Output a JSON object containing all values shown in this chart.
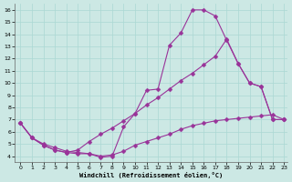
{
  "xlabel": "Windchill (Refroidissement éolien,°C)",
  "bg_color": "#cce8e4",
  "line_color": "#993399",
  "xlim": [
    -0.5,
    23.3
  ],
  "ylim": [
    3.5,
    16.5
  ],
  "xticks": [
    0,
    1,
    2,
    3,
    4,
    5,
    6,
    7,
    8,
    9,
    10,
    11,
    12,
    13,
    14,
    15,
    16,
    17,
    18,
    19,
    20,
    21,
    22,
    23
  ],
  "yticks": [
    4,
    5,
    6,
    7,
    8,
    9,
    10,
    11,
    12,
    13,
    14,
    15,
    16
  ],
  "grid_color": "#aad8d3",
  "line1_x": [
    0,
    1,
    2,
    3,
    4,
    5,
    6,
    7,
    8,
    9,
    10,
    11,
    12,
    13,
    14,
    15,
    16,
    17,
    18,
    19,
    20,
    21,
    22,
    23
  ],
  "line1_y": [
    6.7,
    5.5,
    4.9,
    4.5,
    4.3,
    4.2,
    4.2,
    3.9,
    4.0,
    6.4,
    7.5,
    9.4,
    9.5,
    13.1,
    14.1,
    16.0,
    16.0,
    15.5,
    13.5,
    11.6,
    10.0,
    9.7,
    7.0,
    7.0
  ],
  "line2_x": [
    0,
    1,
    2,
    3,
    4,
    5,
    6,
    7,
    8,
    9,
    10,
    11,
    12,
    13,
    14,
    15,
    16,
    17,
    18,
    19,
    20,
    21,
    22,
    23
  ],
  "line2_y": [
    6.7,
    5.5,
    4.9,
    4.5,
    4.3,
    4.5,
    5.2,
    5.8,
    6.3,
    6.9,
    7.5,
    8.2,
    8.8,
    9.5,
    10.2,
    10.8,
    11.5,
    12.2,
    13.6,
    11.6,
    10.0,
    9.7,
    7.0,
    7.0
  ],
  "line3_x": [
    0,
    1,
    2,
    3,
    4,
    5,
    6,
    7,
    8,
    9,
    10,
    11,
    12,
    13,
    14,
    15,
    16,
    17,
    18,
    19,
    20,
    21,
    22,
    23
  ],
  "line3_y": [
    6.7,
    5.5,
    5.0,
    4.7,
    4.4,
    4.3,
    4.2,
    4.0,
    4.1,
    4.4,
    4.9,
    5.2,
    5.5,
    5.8,
    6.2,
    6.5,
    6.7,
    6.9,
    7.0,
    7.1,
    7.2,
    7.3,
    7.4,
    7.0
  ]
}
